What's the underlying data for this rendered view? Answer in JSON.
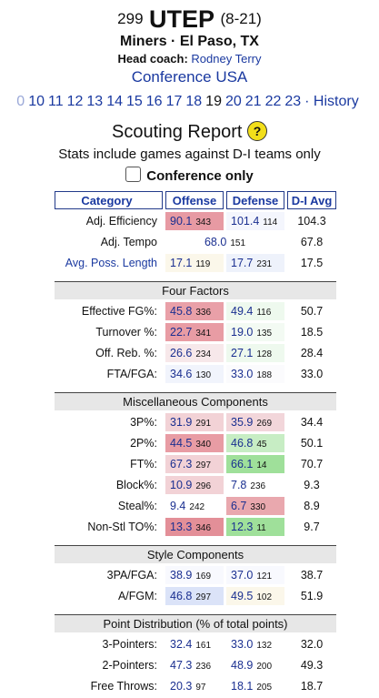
{
  "team": {
    "rank": "299",
    "name": "UTEP",
    "record": "(8-21)",
    "subtitle": "Miners · El Paso, TX",
    "coach_label": "Head coach:",
    "coach_name": "Rodney Terry",
    "conference": "Conference USA"
  },
  "years": [
    "10",
    "11",
    "12",
    "13",
    "14",
    "15",
    "16",
    "17",
    "18",
    "19",
    "20",
    "21",
    "22",
    "23"
  ],
  "current_year": "19",
  "years_prefix": "0",
  "history_label": "· History",
  "scouting": {
    "title": "Scouting Report",
    "help": "?",
    "note": "Stats include games against D-I teams only",
    "conf_only_label": "Conference only"
  },
  "table": {
    "headers": [
      "Category",
      "Offense",
      "Defense",
      "D-I Avg"
    ],
    "sections": [
      {
        "title": "",
        "rows": [
          {
            "label": "Adj. Efficiency",
            "link": false,
            "off": "90.1",
            "off_rank": "343",
            "off_color": "#e79aa3",
            "def": "101.4",
            "def_rank": "114",
            "def_color": "#f4f6fd",
            "avg": "104.3"
          },
          {
            "label": "Adj. Tempo",
            "link": false,
            "tempo": true,
            "off": "68.0",
            "off_rank": "151",
            "off_color": "#ffffff",
            "def": "",
            "def_rank": "",
            "def_color": "#ffffff",
            "avg": "67.8"
          },
          {
            "label": "Avg. Poss. Length",
            "link": true,
            "off": "17.1",
            "off_rank": "119",
            "off_color": "#fbf7ea",
            "def": "17.7",
            "def_rank": "231",
            "def_color": "#eef2fb",
            "avg": "17.5"
          }
        ]
      },
      {
        "title": "Four Factors",
        "rows": [
          {
            "label": "Effective FG%:",
            "link": false,
            "off": "45.8",
            "off_rank": "336",
            "off_color": "#e9a0a8",
            "def": "49.4",
            "def_rank": "116",
            "def_color": "#eef9ee",
            "avg": "50.7"
          },
          {
            "label": "Turnover %:",
            "link": false,
            "off": "22.7",
            "off_rank": "341",
            "off_color": "#e89ca4",
            "def": "19.0",
            "def_rank": "135",
            "def_color": "#f3faf3",
            "avg": "18.5"
          },
          {
            "label": "Off. Reb. %:",
            "link": false,
            "off": "26.6",
            "off_rank": "234",
            "off_color": "#f7e8ea",
            "def": "27.1",
            "def_rank": "128",
            "def_color": "#eef9ee",
            "avg": "28.4"
          },
          {
            "label": "FTA/FGA:",
            "link": false,
            "off": "34.6",
            "off_rank": "130",
            "off_color": "#f1f4fc",
            "def": "33.0",
            "def_rank": "188",
            "def_color": "#fbfbfd",
            "avg": "33.0"
          }
        ]
      },
      {
        "title": "Miscellaneous Components",
        "rows": [
          {
            "label": "3P%:",
            "link": false,
            "off": "31.9",
            "off_rank": "291",
            "off_color": "#f2d2d6",
            "def": "35.9",
            "def_rank": "269",
            "def_color": "#f2d6da",
            "avg": "34.4"
          },
          {
            "label": "2P%:",
            "link": false,
            "off": "44.5",
            "off_rank": "340",
            "off_color": "#e89ca4",
            "def": "46.8",
            "def_rank": "45",
            "def_color": "#c7edc4",
            "avg": "50.1"
          },
          {
            "label": "FT%:",
            "link": false,
            "off": "67.3",
            "off_rank": "297",
            "off_color": "#f2d2d6",
            "def": "66.1",
            "def_rank": "14",
            "def_color": "#9fe09a",
            "avg": "70.7"
          },
          {
            "label": "Block%:",
            "link": false,
            "off": "10.9",
            "off_rank": "296",
            "off_color": "#f2d2d6",
            "def": "7.8",
            "def_rank": "236",
            "def_color": "#ffffff",
            "avg": "9.3"
          },
          {
            "label": "Steal%:",
            "link": false,
            "off": "9.4",
            "off_rank": "242",
            "off_color": "#ffffff",
            "def": "6.7",
            "def_rank": "330",
            "def_color": "#e9a8ae",
            "avg": "8.9"
          },
          {
            "label": "Non-Stl TO%:",
            "link": false,
            "off": "13.3",
            "off_rank": "346",
            "off_color": "#e38f98",
            "def": "12.3",
            "def_rank": "11",
            "def_color": "#9fe09a",
            "avg": "9.7"
          }
        ]
      },
      {
        "title": "Style Components",
        "rows": [
          {
            "label": "3PA/FGA:",
            "link": false,
            "off": "38.9",
            "off_rank": "169",
            "off_color": "#f8f9fe",
            "def": "37.0",
            "def_rank": "121",
            "def_color": "#f8f9fe",
            "avg": "38.7"
          },
          {
            "label": "A/FGM:",
            "link": false,
            "off": "46.8",
            "off_rank": "297",
            "off_color": "#dbe3f8",
            "def": "49.5",
            "def_rank": "102",
            "def_color": "#fbf7ea",
            "avg": "51.9"
          }
        ]
      },
      {
        "title": "Point Distribution (% of total points)",
        "rows": [
          {
            "label": "3-Pointers:",
            "link": false,
            "off": "32.4",
            "off_rank": "161",
            "off_color": "#ffffff",
            "def": "33.0",
            "def_rank": "132",
            "def_color": "#ffffff",
            "avg": "32.0"
          },
          {
            "label": "2-Pointers:",
            "link": false,
            "off": "47.3",
            "off_rank": "236",
            "off_color": "#ffffff",
            "def": "48.9",
            "def_rank": "200",
            "def_color": "#ffffff",
            "avg": "49.3"
          },
          {
            "label": "Free Throws:",
            "link": false,
            "off": "20.3",
            "off_rank": "97",
            "off_color": "#ffffff",
            "def": "18.1",
            "def_rank": "205",
            "def_color": "#ffffff",
            "avg": "18.7"
          }
        ]
      }
    ]
  },
  "colors": {
    "link": "#1a39a0",
    "header_border": "#223a8a",
    "section_bg": "#e7e7e7"
  }
}
